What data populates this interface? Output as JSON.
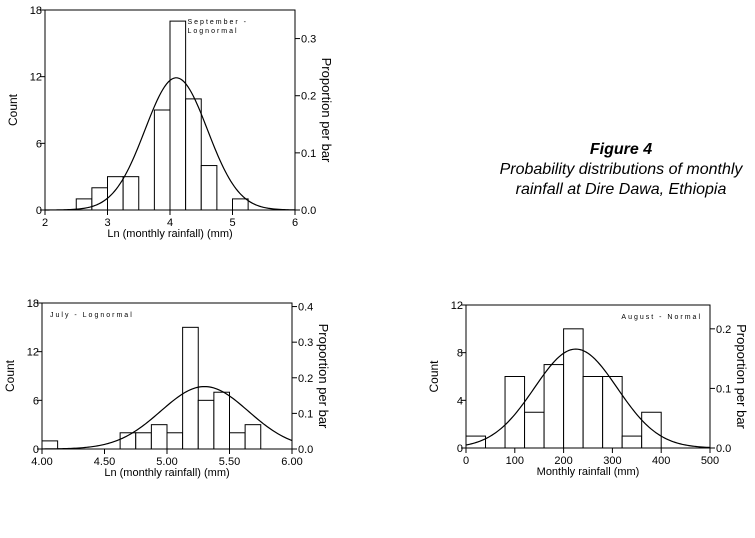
{
  "caption": {
    "figure": "Figure 4",
    "text": "Probability distributions of monthly rainfall at Dire Dawa, Ethiopia"
  },
  "chart_data": [
    {
      "id": "september",
      "type": "bar",
      "annotation_lines": [
        "September -",
        "Lognormal"
      ],
      "xlabel": "Ln (monthly rainfall) (mm)",
      "ylabel": "Count",
      "y2label": "Proportion per bar",
      "xlim": [
        2,
        6
      ],
      "ylim": [
        0,
        18
      ],
      "y2lim": [
        0,
        0.35
      ],
      "xticks": [
        2,
        3,
        4,
        5,
        6
      ],
      "xtick_labels": [
        "2",
        "3",
        "4",
        "5",
        "6"
      ],
      "yticks": [
        0,
        6,
        12,
        18
      ],
      "ytick_labels": [
        "0",
        "6",
        "12",
        "18"
      ],
      "y2ticks": [
        0,
        0.1,
        0.2,
        0.3
      ],
      "y2tick_labels": [
        "0.0",
        "0.1",
        "0.2",
        "0.3"
      ],
      "bin_edges": [
        2.25,
        2.5,
        2.75,
        3.0,
        3.25,
        3.5,
        3.75,
        4.0,
        4.25,
        4.5,
        4.75,
        5.0,
        5.25,
        5.5,
        5.75,
        6.0
      ],
      "counts": [
        0,
        1,
        2,
        3,
        3,
        0,
        9,
        17,
        10,
        4,
        0,
        1,
        0,
        0,
        0
      ],
      "curve": {
        "mean": 4.1,
        "sd": 0.5,
        "peak": 11.9
      }
    },
    {
      "id": "july",
      "type": "bar",
      "annotation_lines": [
        "July - Lognormal"
      ],
      "xlabel": "Ln (monthly rainfall) (mm)",
      "ylabel": "Count",
      "y2label": "Proportion per bar",
      "xlim": [
        4.0,
        6.0
      ],
      "ylim": [
        0,
        18
      ],
      "y2lim": [
        0,
        0.41
      ],
      "xticks": [
        4.0,
        4.5,
        5.0,
        5.5,
        6.0
      ],
      "xtick_labels": [
        "4.00",
        "4.50",
        "5.00",
        "5.50",
        "6.00"
      ],
      "yticks": [
        0,
        6,
        12,
        18
      ],
      "ytick_labels": [
        "0",
        "6",
        "12",
        "18"
      ],
      "y2ticks": [
        0,
        0.1,
        0.2,
        0.3,
        0.4
      ],
      "y2tick_labels": [
        "0.0",
        "0.1",
        "0.2",
        "0.3",
        "0.4"
      ],
      "bin_edges": [
        4.0,
        4.125,
        4.25,
        4.375,
        4.5,
        4.625,
        4.75,
        4.875,
        5.0,
        5.125,
        5.25,
        5.375,
        5.5,
        5.625,
        5.75,
        5.875,
        6.0
      ],
      "counts": [
        1,
        0,
        0,
        0,
        0,
        2,
        2,
        3,
        2,
        15,
        6,
        7,
        2,
        3,
        0,
        0
      ],
      "curve": {
        "mean": 5.3,
        "sd": 0.35,
        "peak": 7.7
      }
    },
    {
      "id": "august",
      "type": "bar",
      "annotation_lines": [
        "August - Normal"
      ],
      "xlabel": "Monthly rainfall (mm)",
      "ylabel": "Count",
      "y2label": "Proportion per bar",
      "xlim": [
        0,
        500
      ],
      "ylim": [
        0,
        12
      ],
      "y2lim": [
        0,
        0.24
      ],
      "xticks": [
        0,
        100,
        200,
        300,
        400,
        500
      ],
      "xtick_labels": [
        "0",
        "100",
        "200",
        "300",
        "400",
        "500"
      ],
      "yticks": [
        0,
        4,
        8,
        12
      ],
      "ytick_labels": [
        "0",
        "4",
        "8",
        "12"
      ],
      "y2ticks": [
        0,
        0.1,
        0.2
      ],
      "y2tick_labels": [
        "0.0",
        "0.1",
        "0.2"
      ],
      "bin_edges": [
        0,
        40,
        80,
        120,
        160,
        200,
        240,
        280,
        320,
        360,
        400,
        440
      ],
      "counts": [
        1,
        0,
        6,
        3,
        7,
        10,
        6,
        6,
        1,
        3,
        0
      ],
      "curve": {
        "mean": 225,
        "sd": 85,
        "peak": 8.3
      }
    }
  ]
}
